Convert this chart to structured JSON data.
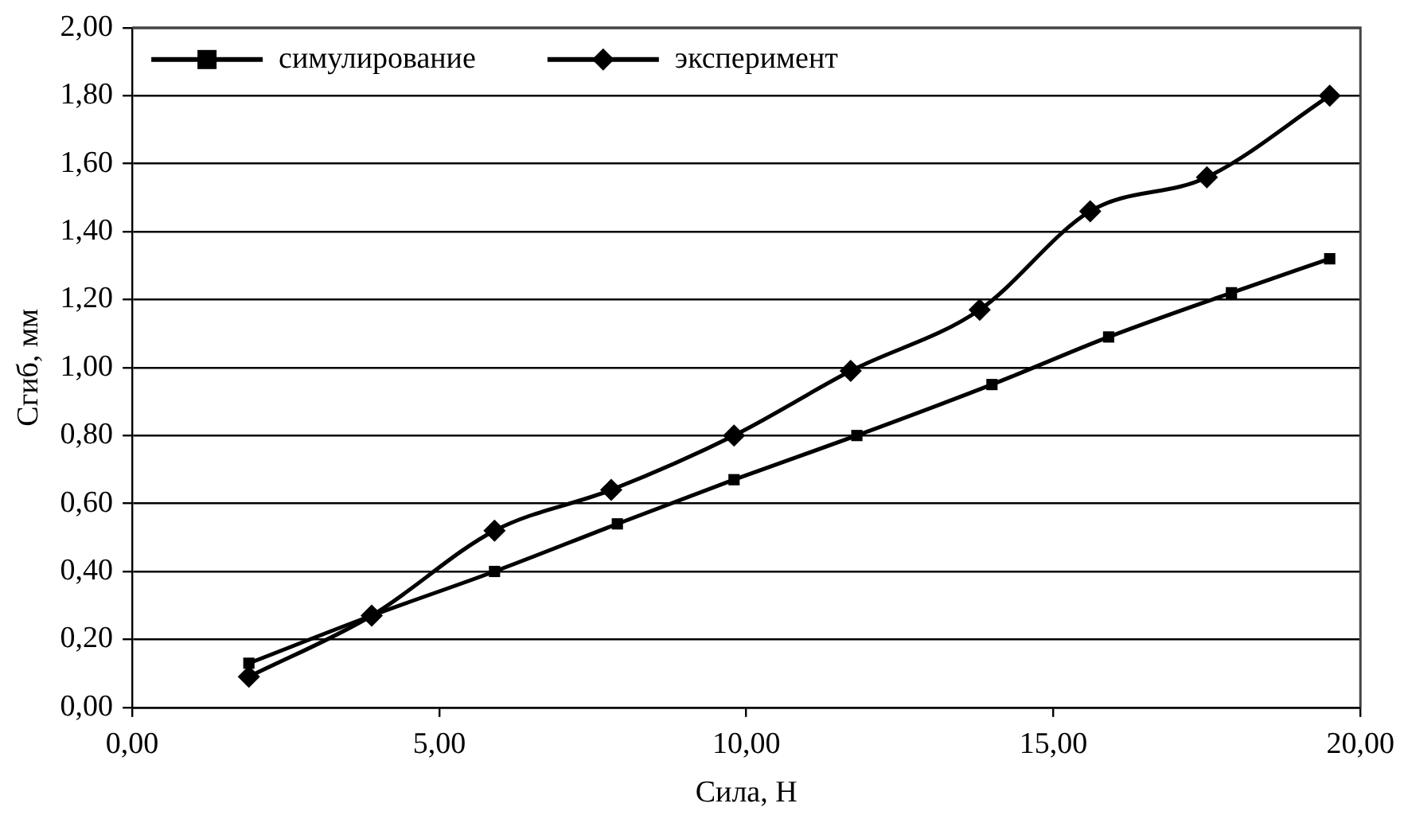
{
  "chart_data": {
    "type": "line",
    "xlabel": "Сила, Н",
    "ylabel": "Сгиб, мм",
    "xlim": [
      0,
      20
    ],
    "xticks": [
      {
        "value": 0,
        "label": "0,00"
      },
      {
        "value": 5,
        "label": "5,00"
      },
      {
        "value": 10,
        "label": "10,00"
      },
      {
        "value": 15,
        "label": "15,00"
      },
      {
        "value": 20,
        "label": "20,00"
      }
    ],
    "ylim": [
      0,
      2
    ],
    "yticks": [
      {
        "value": 0,
        "label": "0,00"
      },
      {
        "value": 0.2,
        "label": "0,20"
      },
      {
        "value": 0.4,
        "label": "0,40"
      },
      {
        "value": 0.6,
        "label": "0,60"
      },
      {
        "value": 0.8,
        "label": "0,80"
      },
      {
        "value": 1,
        "label": "1,00"
      },
      {
        "value": 1.2,
        "label": "1,20"
      },
      {
        "value": 1.4,
        "label": "1,40"
      },
      {
        "value": 1.6,
        "label": "1,60"
      },
      {
        "value": 1.8,
        "label": "1,80"
      },
      {
        "value": 2,
        "label": "2,00"
      }
    ],
    "grid": "y",
    "legend": "top left",
    "line_style": "solid",
    "series": [
      {
        "name": "симулирование",
        "color": "#000000",
        "marker": "square",
        "x": [
          1.9,
          3.9,
          5.9,
          7.9,
          9.8,
          11.8,
          14.0,
          15.9,
          17.9,
          19.5
        ],
        "values": [
          0.13,
          0.27,
          0.4,
          0.54,
          0.67,
          0.8,
          0.95,
          1.09,
          1.22,
          1.32
        ]
      },
      {
        "name": "эксперимент",
        "color": "#000000",
        "marker": "diamond",
        "x": [
          1.9,
          3.9,
          5.9,
          7.8,
          9.8,
          11.7,
          13.8,
          15.6,
          17.5,
          19.5
        ],
        "values": [
          0.09,
          0.27,
          0.52,
          0.64,
          0.8,
          0.99,
          1.17,
          1.46,
          1.56,
          1.8
        ]
      }
    ]
  }
}
